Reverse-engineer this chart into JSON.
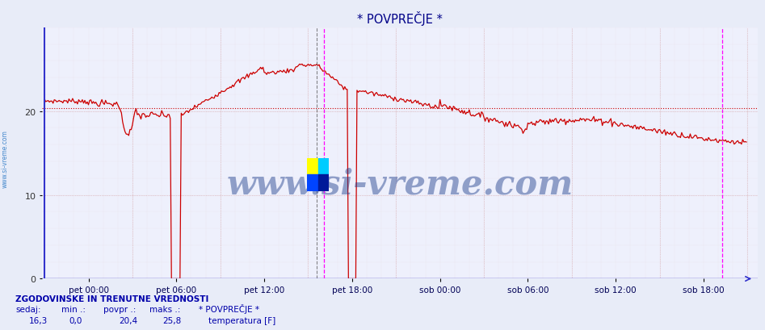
{
  "title": "* POVPREČJE *",
  "bg_color": "#e8ecf8",
  "plot_bg_color": "#eef0fc",
  "grid_color_v": "#d0a0a0",
  "grid_color_h": "#d0a0a0",
  "line_color": "#cc0000",
  "avg_line_color": "#cc0000",
  "avg_line_value": 20.4,
  "ylim": [
    0,
    30
  ],
  "yticks": [
    0,
    10,
    20
  ],
  "title_color": "#000088",
  "watermark": "www.si-vreme.com",
  "watermark_color": "#1a3a8a",
  "left_label": "www.si-vreme.com",
  "left_label_color": "#4488cc",
  "xtick_labels": [
    "pet 00:00",
    "pet 06:00",
    "pet 12:00",
    "pet 18:00",
    "sob 00:00",
    "sob 06:00",
    "sob 12:00",
    "sob 18:00"
  ],
  "n_points": 576,
  "footer_title": "ZGODOVINSKE IN TRENUTNE VREDNOSTI",
  "footer_values": [
    "16,3",
    "0,0",
    "20,4",
    "25,8"
  ],
  "magenta_line_1": 0.398,
  "magenta_line_2": 0.965,
  "current_line": 0.388
}
